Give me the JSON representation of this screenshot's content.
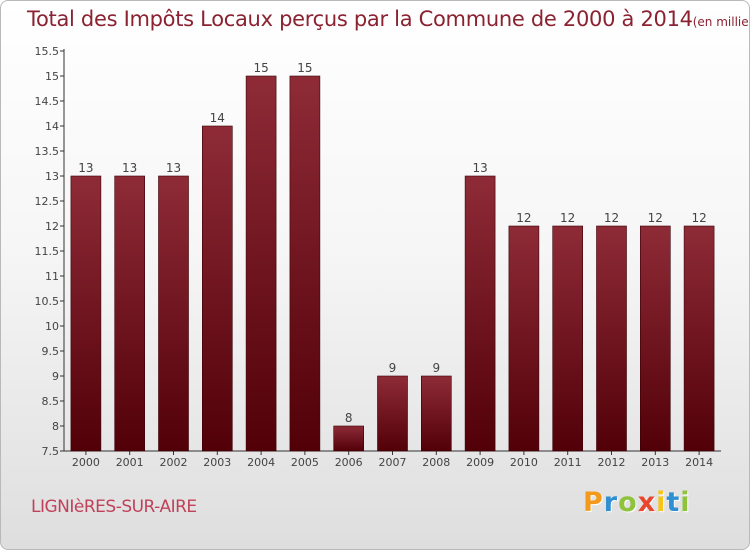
{
  "title": "Total des Impôts Locaux perçus par la Commune de 2000 à 2014",
  "title_unit": "(en milliers d'€)",
  "commune": "LIGNIèRES-SUR-AIRE",
  "logo": {
    "letters": [
      "P",
      "r",
      "o",
      "x",
      "i",
      "t",
      "i"
    ],
    "colors": [
      "#f39a1c",
      "#2f8fd2",
      "#8fc23d",
      "#e8452c",
      "#f7c41a",
      "#2f8fd2",
      "#8fc23d"
    ]
  },
  "colors": {
    "bar_top": "#8e2b37",
    "bar_bottom": "#520008",
    "title": "#8b2232"
  },
  "chart_data": {
    "type": "bar",
    "title": "Total des Impôts Locaux perçus par la Commune de 2000 à 2014",
    "xlabel": "",
    "ylabel": "",
    "categories": [
      "2000",
      "2001",
      "2002",
      "2003",
      "2004",
      "2005",
      "2006",
      "2007",
      "2008",
      "2009",
      "2010",
      "2011",
      "2012",
      "2013",
      "2014"
    ],
    "values": [
      13,
      13,
      13,
      14,
      15,
      15,
      8,
      9,
      9,
      13,
      12,
      12,
      12,
      12,
      12
    ],
    "ylim": [
      7.5,
      15.5
    ],
    "yticks": [
      "7.5",
      "8",
      "8.5",
      "9",
      "9.5",
      "10",
      "10.5",
      "11",
      "11.5",
      "12",
      "12.5",
      "13",
      "13.5",
      "14",
      "14.5",
      "15",
      "15.5"
    ],
    "grid": false
  }
}
